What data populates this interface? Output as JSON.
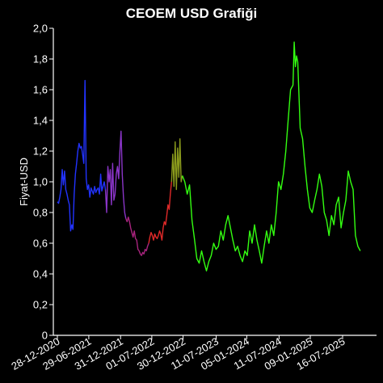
{
  "chart_data": {
    "type": "line",
    "title": "CEOEM USD Grafiği",
    "xlabel": "",
    "ylabel": "Fiyat-USD",
    "ylim": [
      0,
      2.0
    ],
    "yticks": [
      "0",
      "0,2",
      "0,4",
      "0,6",
      "0,8",
      "1,0",
      "1,2",
      "1,4",
      "1,6",
      "1,8",
      "2,0"
    ],
    "xticks": [
      "28-12-2020",
      "29-06-2021",
      "31-12-2021",
      "01-07-2022",
      "30-12-2022",
      "11-07-2023",
      "05-01-2024",
      "11-07-2024",
      "09-01-2025",
      "16-07-2025"
    ],
    "grid": false,
    "legend": "none",
    "series": [
      {
        "color": "#2233ff",
        "x": [
          "2020-12-28",
          "2021-01-04",
          "2021-01-11",
          "2021-01-18",
          "2021-01-25",
          "2021-02-01",
          "2021-02-08",
          "2021-02-15",
          "2021-02-22",
          "2021-03-01",
          "2021-03-08",
          "2021-03-15",
          "2021-03-22",
          "2021-03-29",
          "2021-04-05",
          "2021-04-12",
          "2021-04-19",
          "2021-04-26",
          "2021-05-03",
          "2021-05-10",
          "2021-05-17",
          "2021-05-24",
          "2021-05-31",
          "2021-06-07",
          "2021-06-14",
          "2021-06-21",
          "2021-06-28",
          "2021-07-05",
          "2021-07-12",
          "2021-07-19",
          "2021-07-26",
          "2021-08-02",
          "2021-08-09",
          "2021-08-16",
          "2021-08-23",
          "2021-08-30",
          "2021-09-06",
          "2021-09-13",
          "2021-09-20",
          "2021-09-27",
          "2021-10-04"
        ],
        "values": [
          0.87,
          0.86,
          0.9,
          0.95,
          1.08,
          0.98,
          1.07,
          0.95,
          0.92,
          0.88,
          0.85,
          0.68,
          0.72,
          0.69,
          0.92,
          1.05,
          1.12,
          1.2,
          1.25,
          1.22,
          1.23,
          1.18,
          1.12,
          1.66,
          1.02,
          0.95,
          0.98,
          0.9,
          0.96,
          0.94,
          0.92,
          0.97,
          0.93,
          0.95,
          0.96,
          0.92,
          1.05,
          0.94,
          0.97,
          1.0,
          0.95
        ]
      },
      {
        "color": "#8a35c8",
        "x": [
          "2021-10-04",
          "2021-10-11",
          "2021-10-18",
          "2021-10-25",
          "2021-11-01",
          "2021-11-08",
          "2021-11-15",
          "2021-11-22",
          "2021-11-29",
          "2021-12-06",
          "2021-12-13",
          "2021-12-20",
          "2021-12-27",
          "2022-01-03",
          "2022-01-10",
          "2022-01-17",
          "2022-01-24",
          "2022-01-31"
        ],
        "values": [
          0.95,
          0.8,
          1.1,
          1.0,
          1.08,
          0.85,
          1.12,
          0.88,
          0.92,
          1.05,
          1.1,
          1.02,
          1.2,
          1.33,
          1.05,
          0.9,
          0.8,
          0.76
        ]
      },
      {
        "color": "#a8247e",
        "x": [
          "2022-01-31",
          "2022-02-07",
          "2022-02-14",
          "2022-02-21",
          "2022-02-28",
          "2022-03-07",
          "2022-03-14",
          "2022-03-21",
          "2022-03-28",
          "2022-04-04",
          "2022-04-11",
          "2022-04-18",
          "2022-04-25",
          "2022-05-02",
          "2022-05-09",
          "2022-05-16",
          "2022-05-23",
          "2022-05-30",
          "2022-06-06",
          "2022-06-13"
        ],
        "values": [
          0.76,
          0.74,
          0.77,
          0.74,
          0.7,
          0.67,
          0.64,
          0.68,
          0.63,
          0.62,
          0.56,
          0.55,
          0.53,
          0.52,
          0.54,
          0.53,
          0.56,
          0.55,
          0.58,
          0.6
        ]
      },
      {
        "color": "#e02929",
        "x": [
          "2022-06-13",
          "2022-06-20",
          "2022-06-27",
          "2022-07-04",
          "2022-07-11",
          "2022-07-18",
          "2022-07-25",
          "2022-08-01",
          "2022-08-08",
          "2022-08-15",
          "2022-08-22",
          "2022-08-29",
          "2022-09-05",
          "2022-09-12",
          "2022-09-19",
          "2022-09-26",
          "2022-10-03",
          "2022-10-10",
          "2022-10-17",
          "2022-10-24"
        ],
        "values": [
          0.6,
          0.64,
          0.67,
          0.65,
          0.62,
          0.66,
          0.64,
          0.63,
          0.65,
          0.68,
          0.66,
          0.62,
          0.7,
          0.74,
          0.72,
          0.78,
          0.85,
          0.82,
          0.92,
          1.0
        ]
      },
      {
        "color": "#8a9a1c",
        "x": [
          "2022-10-24",
          "2022-10-31",
          "2022-11-07",
          "2022-11-14",
          "2022-11-21",
          "2022-11-28",
          "2022-12-05",
          "2022-12-12",
          "2022-12-19",
          "2022-12-26"
        ],
        "values": [
          1.0,
          1.18,
          0.97,
          1.26,
          0.95,
          1.22,
          1.03,
          1.28,
          1.0,
          1.04
        ]
      },
      {
        "color": "#33ff11",
        "x": [
          "2022-12-26",
          "2023-01-09",
          "2023-01-23",
          "2023-02-06",
          "2023-02-20",
          "2023-03-06",
          "2023-03-20",
          "2023-04-03",
          "2023-04-17",
          "2023-05-01",
          "2023-05-15",
          "2023-05-29",
          "2023-06-12",
          "2023-06-26",
          "2023-07-10",
          "2023-07-24",
          "2023-08-07",
          "2023-08-21",
          "2023-09-04",
          "2023-09-18",
          "2023-10-02",
          "2023-10-16",
          "2023-10-30",
          "2023-11-13",
          "2023-11-27",
          "2023-12-11",
          "2023-12-25",
          "2024-01-08",
          "2024-01-22",
          "2024-02-05",
          "2024-02-19",
          "2024-03-04",
          "2024-03-18",
          "2024-04-01",
          "2024-04-15",
          "2024-04-29",
          "2024-05-13",
          "2024-05-27",
          "2024-06-10",
          "2024-06-24",
          "2024-07-08",
          "2024-07-22",
          "2024-08-05",
          "2024-08-19",
          "2024-09-02",
          "2024-09-16",
          "2024-09-30",
          "2024-10-07",
          "2024-10-14",
          "2024-10-21",
          "2024-10-28",
          "2024-11-11",
          "2024-11-25",
          "2024-12-09",
          "2024-12-23",
          "2025-01-06",
          "2025-01-20",
          "2025-02-03",
          "2025-02-17",
          "2025-03-03",
          "2025-03-17",
          "2025-03-31",
          "2025-04-14",
          "2025-04-28",
          "2025-05-12",
          "2025-05-26",
          "2025-06-09",
          "2025-06-23",
          "2025-07-07",
          "2025-07-21",
          "2025-08-04",
          "2025-08-18",
          "2025-09-01",
          "2025-09-15",
          "2025-09-29",
          "2025-10-13",
          "2025-10-27"
        ],
        "values": [
          1.04,
          1.0,
          0.92,
          0.98,
          0.75,
          0.63,
          0.5,
          0.47,
          0.55,
          0.48,
          0.42,
          0.48,
          0.52,
          0.6,
          0.56,
          0.58,
          0.68,
          0.62,
          0.72,
          0.78,
          0.7,
          0.62,
          0.55,
          0.58,
          0.52,
          0.48,
          0.55,
          0.52,
          0.68,
          0.6,
          0.72,
          0.62,
          0.55,
          0.47,
          0.58,
          0.68,
          0.6,
          0.72,
          0.65,
          0.8,
          1.0,
          0.95,
          1.05,
          1.2,
          1.4,
          1.6,
          1.63,
          1.91,
          1.75,
          1.82,
          1.78,
          1.35,
          1.28,
          1.1,
          0.95,
          0.83,
          0.8,
          0.88,
          0.95,
          1.05,
          0.97,
          0.8,
          0.75,
          0.65,
          0.78,
          0.72,
          0.85,
          0.9,
          0.7,
          0.8,
          0.88,
          1.07,
          1.0,
          0.95,
          0.65,
          0.58,
          0.55
        ]
      }
    ]
  }
}
